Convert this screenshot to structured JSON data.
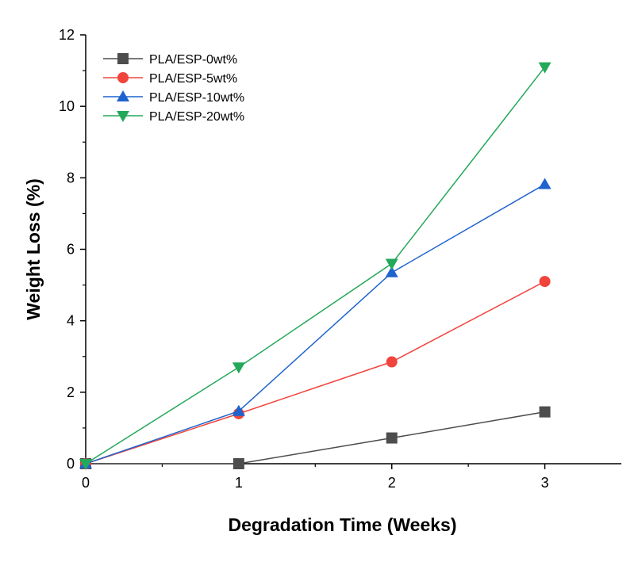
{
  "chart_data": {
    "type": "line",
    "title": "",
    "xlabel": "Degradation Time (Weeks)",
    "ylabel": "Weight Loss (%)",
    "xlim": [
      0,
      3.5
    ],
    "ylim": [
      0,
      12
    ],
    "xticks": [
      0,
      1,
      2,
      3
    ],
    "yticks": [
      0,
      2,
      4,
      6,
      8,
      10,
      12
    ],
    "x": [
      0,
      1,
      2,
      3
    ],
    "grid": false,
    "legend_position": "top-left",
    "series": [
      {
        "name": "PLA/ESP-0wt%",
        "values": [
          0,
          0,
          0.72,
          1.45
        ],
        "color": "#4d4d4d",
        "marker": "square"
      },
      {
        "name": "PLA/ESP-5wt%",
        "values": [
          0,
          1.4,
          2.85,
          5.1
        ],
        "color": "#f0443c",
        "marker": "circle"
      },
      {
        "name": "PLA/ESP-10wt%",
        "values": [
          0,
          1.47,
          5.35,
          7.82
        ],
        "color": "#1f63cf",
        "marker": "triangle-up"
      },
      {
        "name": "PLA/ESP-20wt%",
        "values": [
          0,
          2.7,
          5.6,
          11.1
        ],
        "color": "#24a85a",
        "marker": "triangle-down"
      }
    ]
  }
}
